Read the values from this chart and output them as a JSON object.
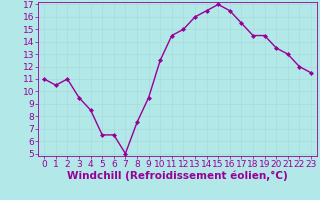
{
  "x": [
    0,
    1,
    2,
    3,
    4,
    5,
    6,
    7,
    8,
    9,
    10,
    11,
    12,
    13,
    14,
    15,
    16,
    17,
    18,
    19,
    20,
    21,
    22,
    23
  ],
  "y": [
    11.0,
    10.5,
    11.0,
    9.5,
    8.5,
    6.5,
    6.5,
    5.0,
    7.5,
    9.5,
    12.5,
    14.5,
    15.0,
    16.0,
    16.5,
    17.0,
    16.5,
    15.5,
    14.5,
    14.5,
    13.5,
    13.0,
    12.0,
    11.5
  ],
  "line_color": "#990099",
  "marker": "D",
  "marker_size": 2,
  "bg_color": "#b2e8e8",
  "grid_color": "#aadddd",
  "xlabel": "Windchill (Refroidissement éolien,°C)",
  "xlabel_color": "#990099",
  "tick_color": "#990099",
  "ylim": [
    5,
    17
  ],
  "xlim": [
    -0.5,
    23.5
  ],
  "yticks": [
    5,
    6,
    7,
    8,
    9,
    10,
    11,
    12,
    13,
    14,
    15,
    16,
    17
  ],
  "xticks": [
    0,
    1,
    2,
    3,
    4,
    5,
    6,
    7,
    8,
    9,
    10,
    11,
    12,
    13,
    14,
    15,
    16,
    17,
    18,
    19,
    20,
    21,
    22,
    23
  ],
  "tick_fontsize": 6.5,
  "xlabel_fontsize": 7.5,
  "linewidth": 1.0
}
